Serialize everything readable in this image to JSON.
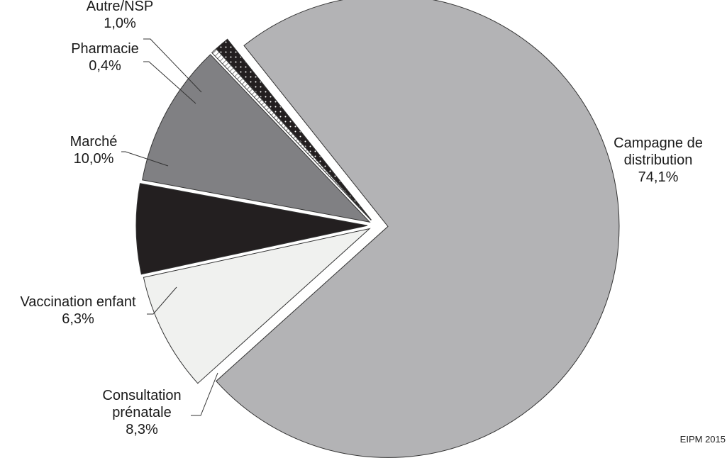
{
  "chart_data": {
    "type": "pie",
    "title": "",
    "source_note": "EIPM 2015",
    "slices": [
      {
        "name": "Campagne de distribution",
        "label_lines": [
          "Campagne de",
          "distribution"
        ],
        "value_label": "74,1%",
        "value": 74.1,
        "color": "#b3b3b5"
      },
      {
        "name": "Consultation prénatale",
        "label_lines": [
          "Consultation",
          "prénatale"
        ],
        "value_label": "8,3%",
        "value": 8.3,
        "color": "#f0f1ef"
      },
      {
        "name": "Vaccination enfant",
        "label_lines": [
          "Vaccination enfant"
        ],
        "value_label": "6,3%",
        "value": 6.3,
        "color": "#231f20"
      },
      {
        "name": "Marché",
        "label_lines": [
          "Marché"
        ],
        "value_label": "10,0%",
        "value": 10.0,
        "color": "#808083"
      },
      {
        "name": "Pharmacie",
        "label_lines": [
          "Pharmacie"
        ],
        "value_label": "0,4%",
        "value": 0.4,
        "color": "#ffffff",
        "pattern": "hatch"
      },
      {
        "name": "Autre/NSP",
        "label_lines": [
          "Autre/NSP"
        ],
        "value_label": "1,0%",
        "value": 1.0,
        "color": "#231f20",
        "pattern": "dots"
      }
    ]
  }
}
